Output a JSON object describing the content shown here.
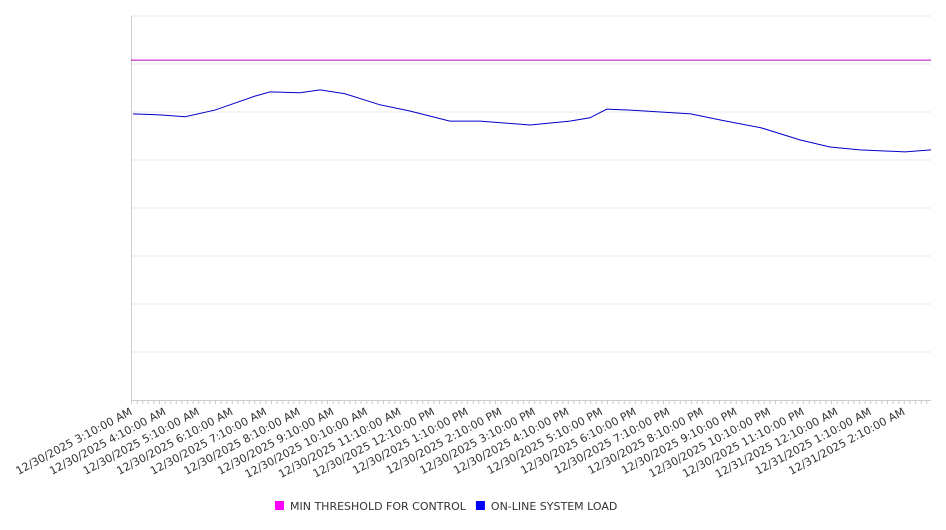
{
  "chart_data": {
    "type": "line",
    "title": "",
    "xlabel": "",
    "ylabel": "",
    "x_unit": "hours after 12/30/2025 3:10:00 AM",
    "xlim": [
      0,
      23.75
    ],
    "ylim": [
      0,
      8
    ],
    "grid": true,
    "y_tick_labels_shown": false,
    "x_tick_labels": [
      "12/30/2025 3:10:00 AM",
      "12/30/2025 4:10:00 AM",
      "12/30/2025 5:10:00 AM",
      "12/30/2025 6:10:00 AM",
      "12/30/2025 7:10:00 AM",
      "12/30/2025 8:10:00 AM",
      "12/30/2025 9:10:00 AM",
      "12/30/2025 10:10:00 AM",
      "12/30/2025 11:10:00 AM",
      "12/30/2025 12:10:00 PM",
      "12/30/2025 1:10:00 PM",
      "12/30/2025 2:10:00 PM",
      "12/30/2025 3:10:00 PM",
      "12/30/2025 4:10:00 PM",
      "12/30/2025 5:10:00 PM",
      "12/30/2025 6:10:00 PM",
      "12/30/2025 7:10:00 PM",
      "12/30/2025 8:10:00 PM",
      "12/30/2025 9:10:00 PM",
      "12/30/2025 10:10:00 PM",
      "12/30/2025 11:10:00 PM",
      "12/31/2025 12:10:00 AM",
      "12/31/2025 1:10:00 AM",
      "12/31/2025 2:10:00 AM"
    ],
    "legend_position": "bottom",
    "series": [
      {
        "name": "MIN THRESHOLD FOR CONTROL",
        "color": "#ff00ff",
        "line_color": "#c000c0",
        "x": [
          0,
          23.75
        ],
        "y": [
          7.08,
          7.08
        ]
      },
      {
        "name": "ON-LINE SYSTEM LOAD",
        "color": "#0000ff",
        "line_color": "#0000cc",
        "x": [
          0,
          0.8,
          1.55,
          2.44,
          3.63,
          4.08,
          4.97,
          5.57,
          6.31,
          7.35,
          8.24,
          9.43,
          10.33,
          11.82,
          13.0,
          13.6,
          14.1,
          14.8,
          15.7,
          16.6,
          17.5,
          18.7,
          19.85,
          20.74,
          21.64,
          22.98,
          23.75
        ],
        "y": [
          5.96,
          5.94,
          5.9,
          6.04,
          6.33,
          6.42,
          6.4,
          6.46,
          6.38,
          6.15,
          6.02,
          5.81,
          5.81,
          5.73,
          5.81,
          5.88,
          6.06,
          6.04,
          6.0,
          5.96,
          5.83,
          5.67,
          5.42,
          5.27,
          5.21,
          5.17,
          5.21
        ]
      }
    ]
  }
}
